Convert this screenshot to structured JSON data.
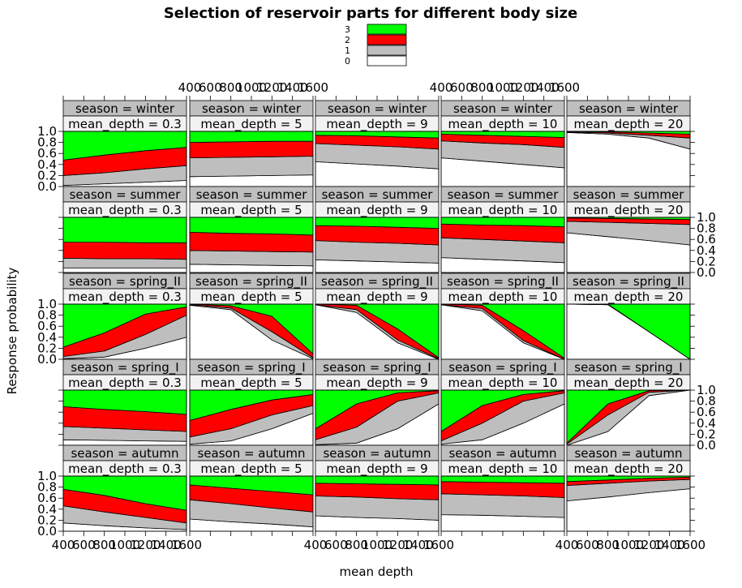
{
  "chart_data": {
    "type": "area",
    "title": "Selection of reservoir parts for different body size",
    "xlabel": "mean depth",
    "ylabel": "Response probability",
    "xlim": [
      400,
      1600
    ],
    "ylim": [
      0,
      1
    ],
    "x_ticks": [
      400,
      600,
      800,
      1000,
      1200,
      1400,
      1600
    ],
    "x_tick_labels": [
      "400",
      "600",
      "800",
      "1000",
      "1200",
      "1400",
      "1600"
    ],
    "y_ticks": [
      0,
      0.2,
      0.4,
      0.6,
      0.8,
      1
    ],
    "y_tick_labels": [
      "0.0",
      "0.2",
      "0.4",
      "0.6",
      "0.8",
      "1.0"
    ],
    "legend": {
      "position": "top-center",
      "entries": [
        {
          "label": "3",
          "color": "#00ff00"
        },
        {
          "label": "2",
          "color": "#ff0000"
        },
        {
          "label": "1",
          "color": "#bebebe"
        },
        {
          "label": "0",
          "color": "#ffffff"
        }
      ]
    },
    "strip_bg_season": "#bfbfbf",
    "strip_bg_depth": "#f2f2f2",
    "strip_season_prefix": "season = ",
    "strip_depth_prefix": "mean_depth = ",
    "seasons": [
      "winter",
      "summer",
      "spring_II",
      "spring_I",
      "autumn"
    ],
    "mean_depths": [
      "0.3",
      "5",
      "9",
      "10",
      "20"
    ],
    "x": [
      400,
      800,
      1200,
      1600
    ],
    "panels": {
      "winter": [
        {
          "c0": [
            0.02,
            0.05,
            0.08,
            0.11
          ],
          "c1": [
            0.2,
            0.25,
            0.32,
            0.38
          ],
          "c2": [
            0.48,
            0.57,
            0.65,
            0.71
          ]
        },
        {
          "c0": [
            0.18,
            0.19,
            0.2,
            0.21
          ],
          "c1": [
            0.52,
            0.53,
            0.54,
            0.55
          ],
          "c2": [
            0.8,
            0.81,
            0.82,
            0.82
          ]
        },
        {
          "c0": [
            0.45,
            0.41,
            0.37,
            0.32
          ],
          "c1": [
            0.78,
            0.75,
            0.72,
            0.68
          ],
          "c2": [
            0.93,
            0.92,
            0.9,
            0.88
          ]
        },
        {
          "c0": [
            0.52,
            0.46,
            0.4,
            0.34
          ],
          "c1": [
            0.83,
            0.79,
            0.76,
            0.71
          ],
          "c2": [
            0.95,
            0.93,
            0.91,
            0.89
          ]
        },
        {
          "c0": [
            0.98,
            0.95,
            0.88,
            0.68
          ],
          "c1": [
            0.99,
            0.97,
            0.93,
            0.88
          ],
          "c2": [
            1.0,
            0.99,
            0.97,
            0.95
          ]
        }
      ],
      "summer": [
        {
          "c0": [
            0.08,
            0.08,
            0.08,
            0.08
          ],
          "c1": [
            0.26,
            0.25,
            0.25,
            0.24
          ],
          "c2": [
            0.55,
            0.55,
            0.54,
            0.54
          ]
        },
        {
          "c0": [
            0.15,
            0.14,
            0.13,
            0.12
          ],
          "c1": [
            0.4,
            0.39,
            0.38,
            0.37
          ],
          "c2": [
            0.73,
            0.71,
            0.7,
            0.68
          ]
        },
        {
          "c0": [
            0.23,
            0.21,
            0.19,
            0.17
          ],
          "c1": [
            0.58,
            0.55,
            0.53,
            0.5
          ],
          "c2": [
            0.85,
            0.84,
            0.82,
            0.8
          ]
        },
        {
          "c0": [
            0.27,
            0.24,
            0.21,
            0.18
          ],
          "c1": [
            0.63,
            0.6,
            0.57,
            0.54
          ],
          "c2": [
            0.88,
            0.86,
            0.85,
            0.83
          ]
        },
        {
          "c0": [
            0.72,
            0.65,
            0.58,
            0.5
          ],
          "c1": [
            0.93,
            0.91,
            0.89,
            0.87
          ],
          "c2": [
            0.99,
            0.98,
            0.97,
            0.96
          ]
        }
      ],
      "spring_II": [
        {
          "c0": [
            0.01,
            0.04,
            0.2,
            0.4
          ],
          "c1": [
            0.05,
            0.15,
            0.45,
            0.8
          ],
          "c2": [
            0.22,
            0.48,
            0.82,
            0.95
          ]
        },
        {
          "c0": [
            0.98,
            0.9,
            0.35,
            0.01
          ],
          "c1": [
            0.99,
            0.93,
            0.5,
            0.03
          ],
          "c2": [
            1.0,
            0.97,
            0.78,
            0.1
          ]
        },
        {
          "c0": [
            0.99,
            0.85,
            0.3,
            0.0
          ],
          "c1": [
            0.99,
            0.9,
            0.35,
            0.01
          ],
          "c2": [
            1.0,
            0.98,
            0.55,
            0.03
          ]
        },
        {
          "c0": [
            0.99,
            0.88,
            0.3,
            0.0
          ],
          "c1": [
            0.99,
            0.92,
            0.34,
            0.0
          ],
          "c2": [
            1.0,
            0.98,
            0.52,
            0.02
          ]
        },
        {
          "c0": [
            1.0,
            0.99,
            0.5,
            0.0
          ],
          "c1": [
            1.0,
            0.99,
            0.5,
            0.0
          ],
          "c2": [
            1.0,
            1.0,
            0.5,
            0.0
          ]
        }
      ],
      "spring_I": [
        {
          "c0": [
            0.1,
            0.09,
            0.08,
            0.07
          ],
          "c1": [
            0.34,
            0.31,
            0.28,
            0.25
          ],
          "c2": [
            0.7,
            0.65,
            0.61,
            0.56
          ]
        },
        {
          "c0": [
            0.02,
            0.08,
            0.3,
            0.58
          ],
          "c1": [
            0.15,
            0.3,
            0.55,
            0.72
          ],
          "c2": [
            0.45,
            0.65,
            0.82,
            0.92
          ]
        },
        {
          "c0": [
            0.01,
            0.04,
            0.3,
            0.75
          ],
          "c1": [
            0.1,
            0.33,
            0.8,
            0.95
          ],
          "c2": [
            0.3,
            0.75,
            0.95,
            0.99
          ]
        },
        {
          "c0": [
            0.02,
            0.1,
            0.4,
            0.75
          ],
          "c1": [
            0.08,
            0.4,
            0.8,
            0.95
          ],
          "c2": [
            0.25,
            0.72,
            0.92,
            0.99
          ]
        },
        {
          "c0": [
            0.0,
            0.25,
            0.9,
            1.0
          ],
          "c1": [
            0.02,
            0.55,
            0.96,
            1.0
          ],
          "c2": [
            0.04,
            0.75,
            0.99,
            1.0
          ]
        }
      ],
      "autumn": [
        {
          "c0": [
            0.15,
            0.1,
            0.06,
            0.03
          ],
          "c1": [
            0.46,
            0.35,
            0.25,
            0.15
          ],
          "c2": [
            0.76,
            0.65,
            0.5,
            0.38
          ]
        },
        {
          "c0": [
            0.22,
            0.17,
            0.13,
            0.08
          ],
          "c1": [
            0.57,
            0.5,
            0.42,
            0.35
          ],
          "c2": [
            0.84,
            0.78,
            0.72,
            0.66
          ]
        },
        {
          "c0": [
            0.28,
            0.25,
            0.23,
            0.2
          ],
          "c1": [
            0.64,
            0.62,
            0.59,
            0.57
          ],
          "c2": [
            0.87,
            0.86,
            0.85,
            0.84
          ]
        },
        {
          "c0": [
            0.3,
            0.29,
            0.27,
            0.25
          ],
          "c1": [
            0.68,
            0.66,
            0.64,
            0.61
          ],
          "c2": [
            0.9,
            0.89,
            0.88,
            0.87
          ]
        },
        {
          "c0": [
            0.55,
            0.62,
            0.7,
            0.77
          ],
          "c1": [
            0.83,
            0.87,
            0.91,
            0.94
          ],
          "c2": [
            0.9,
            0.93,
            0.96,
            0.98
          ]
        }
      ]
    }
  }
}
